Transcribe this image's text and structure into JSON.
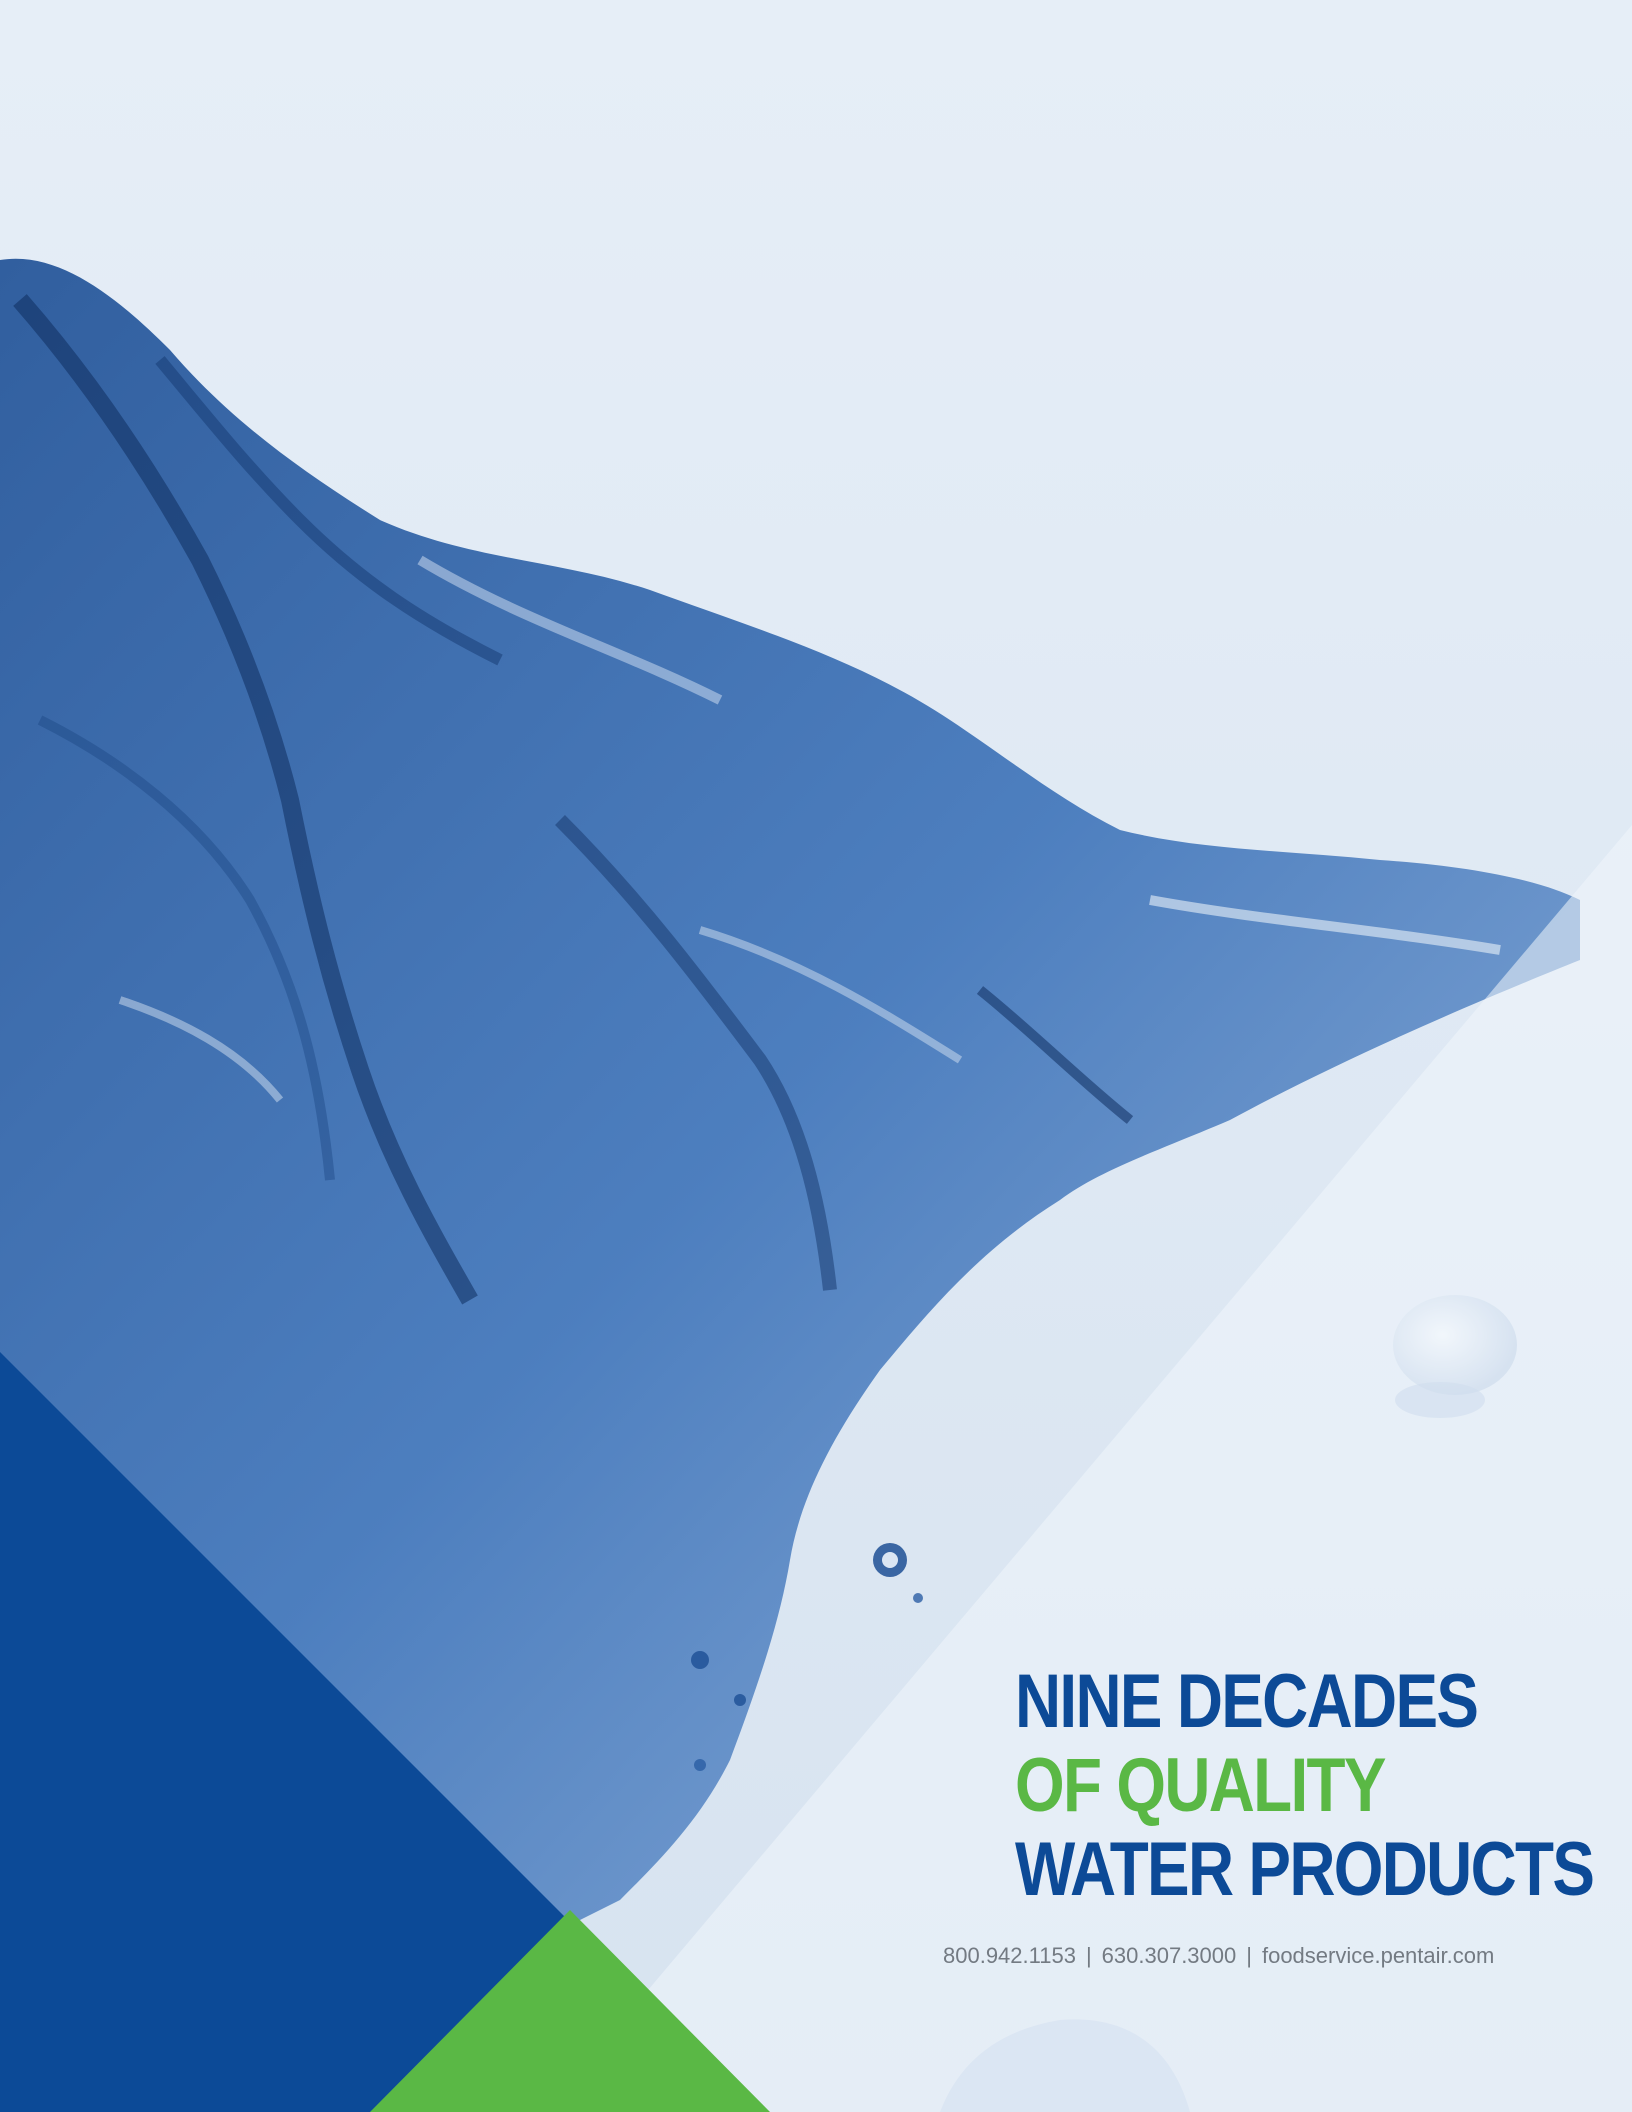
{
  "colors": {
    "background": "#dde7f2",
    "brand_blue": "#0c4a97",
    "brand_green": "#5ab845",
    "contact_gray": "#737a82"
  },
  "headline": {
    "line1": "NINE DECADES",
    "line2": "OF QUALITY",
    "line3": "WATER PRODUCTS"
  },
  "contact": {
    "phone1": "800.942.1153",
    "phone2": "630.307.3000",
    "website": "foodservice.pentair.com",
    "separator": "|"
  }
}
